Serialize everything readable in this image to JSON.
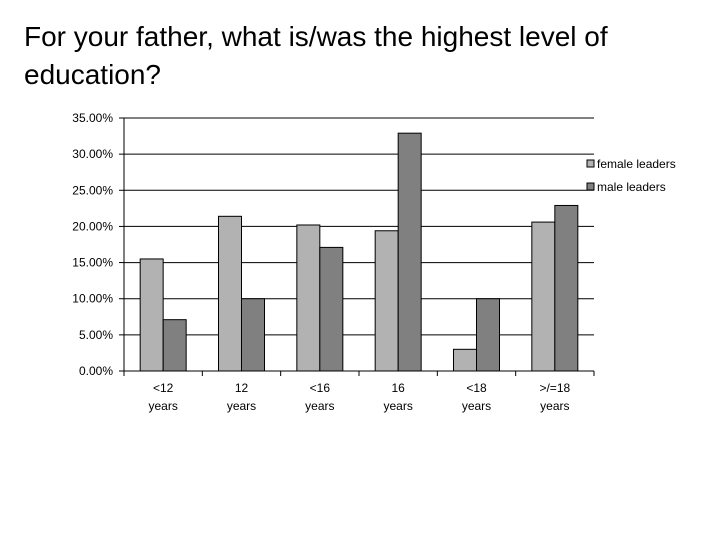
{
  "title": "For your father, what is/was the highest level of education?",
  "colors": {
    "female": "#b2b2b2",
    "male": "#808080",
    "grid": "#000000",
    "bar_stroke": "#000000"
  },
  "chart_data": {
    "type": "bar",
    "categories": [
      [
        "<12",
        "years"
      ],
      [
        "12",
        "years"
      ],
      [
        "<16",
        "years"
      ],
      [
        "16",
        "years"
      ],
      [
        "<18",
        "years"
      ],
      [
        ">/=18",
        "years"
      ]
    ],
    "series": [
      {
        "name": "female leaders",
        "values": [
          15.5,
          21.4,
          20.2,
          19.4,
          3.0,
          20.6
        ]
      },
      {
        "name": "male leaders",
        "values": [
          7.1,
          10.0,
          17.1,
          32.9,
          10.0,
          22.9
        ]
      }
    ],
    "ylim": [
      0,
      35
    ],
    "yticks": [
      0,
      5,
      10,
      15,
      20,
      25,
      30,
      35
    ],
    "ytick_labels": [
      "0.00%",
      "5.00%",
      "10.00%",
      "15.00%",
      "20.00%",
      "25.00%",
      "30.00%",
      "35.00%"
    ],
    "grid": true,
    "legend_position": "right"
  }
}
